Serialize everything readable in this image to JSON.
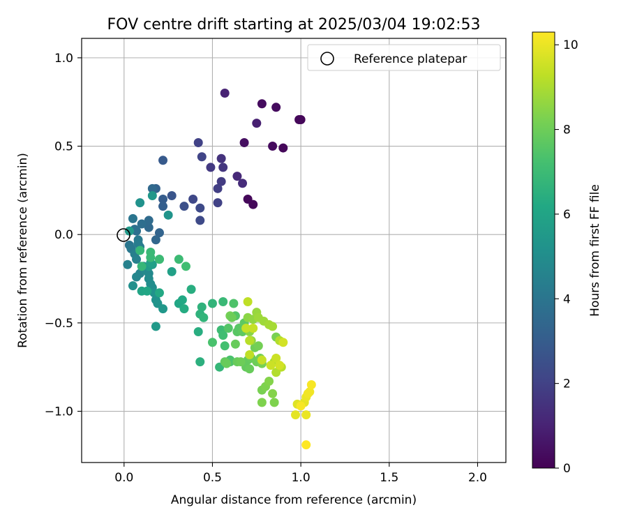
{
  "chart_data": {
    "type": "scatter",
    "title": "FOV centre drift starting at 2025/03/04 19:02:53",
    "xlabel": "Angular distance from reference (arcmin)",
    "ylabel": "Rotation from reference (arcmin)",
    "xlim": [
      -0.24,
      2.16
    ],
    "ylim": [
      -1.29,
      1.11
    ],
    "xticks": [
      0.0,
      0.5,
      1.0,
      1.5,
      2.0
    ],
    "xtick_labels": [
      "0.0",
      "0.5",
      "1.0",
      "1.5",
      "2.0"
    ],
    "yticks": [
      -1.0,
      -0.5,
      0.0,
      0.5,
      1.0
    ],
    "ytick_labels": [
      "−1.0",
      "−0.5",
      "0.0",
      "0.5",
      "1.0"
    ],
    "grid": true,
    "legend": {
      "placement": "top-right",
      "entries": [
        "Reference platepar"
      ]
    },
    "reference_point": {
      "x": 0.0,
      "y": 0.0,
      "marker": "open-circle"
    },
    "colorbar": {
      "label": "Hours from first FF file",
      "colormap": "viridis",
      "range": [
        0,
        10.3
      ],
      "ticks": [
        0,
        2,
        4,
        6,
        8,
        10
      ],
      "tick_labels": [
        "0",
        "2",
        "4",
        "6",
        "8",
        "10"
      ]
    },
    "points": [
      [
        1.0,
        0.65,
        0.1
      ],
      [
        0.78,
        0.74,
        0.3
      ],
      [
        0.86,
        0.72,
        0.3
      ],
      [
        0.68,
        0.52,
        0.4
      ],
      [
        0.84,
        0.5,
        0.3
      ],
      [
        0.9,
        0.49,
        0.2
      ],
      [
        0.7,
        0.2,
        0.2
      ],
      [
        0.73,
        0.17,
        0.2
      ],
      [
        0.99,
        0.65,
        0.2
      ],
      [
        0.75,
        0.63,
        0.9
      ],
      [
        0.57,
        0.8,
        1.0
      ],
      [
        0.64,
        0.33,
        1.2
      ],
      [
        0.67,
        0.29,
        1.3
      ],
      [
        0.55,
        0.43,
        1.5
      ],
      [
        0.56,
        0.38,
        1.6
      ],
      [
        0.49,
        0.38,
        1.7
      ],
      [
        0.55,
        0.3,
        1.8
      ],
      [
        0.53,
        0.26,
        1.9
      ],
      [
        0.53,
        0.18,
        2.0
      ],
      [
        0.42,
        0.52,
        2.0
      ],
      [
        0.44,
        0.44,
        2.1
      ],
      [
        0.39,
        0.2,
        2.2
      ],
      [
        0.43,
        0.15,
        2.3
      ],
      [
        0.43,
        0.08,
        2.3
      ],
      [
        0.34,
        0.16,
        2.5
      ],
      [
        0.27,
        0.22,
        2.7
      ],
      [
        0.22,
        0.42,
        2.9
      ],
      [
        0.22,
        0.2,
        3.0
      ],
      [
        0.22,
        0.16,
        3.1
      ],
      [
        0.18,
        0.26,
        3.2
      ],
      [
        0.2,
        0.01,
        3.3
      ],
      [
        0.18,
        -0.03,
        3.4
      ],
      [
        0.16,
        0.26,
        3.5
      ],
      [
        0.14,
        0.04,
        3.5
      ],
      [
        0.14,
        0.08,
        3.6
      ],
      [
        0.1,
        0.06,
        3.7
      ],
      [
        0.07,
        0.02,
        3.8
      ],
      [
        0.06,
        0.03,
        3.8
      ],
      [
        0.05,
        0.09,
        4.0
      ],
      [
        0.03,
        -0.06,
        4.0
      ],
      [
        0.04,
        -0.08,
        4.1
      ],
      [
        0.08,
        -0.03,
        4.2
      ],
      [
        0.08,
        -0.05,
        4.3
      ],
      [
        0.09,
        -0.07,
        4.3
      ],
      [
        0.06,
        -0.11,
        4.4
      ],
      [
        0.07,
        -0.14,
        4.5
      ],
      [
        0.02,
        -0.17,
        4.5
      ],
      [
        0.09,
        -0.22,
        4.6
      ],
      [
        0.07,
        -0.24,
        4.7
      ],
      [
        0.11,
        -0.18,
        4.7
      ],
      [
        0.12,
        -0.2,
        4.8
      ],
      [
        0.14,
        -0.22,
        4.8
      ],
      [
        0.14,
        -0.25,
        4.9
      ],
      [
        0.15,
        -0.28,
        5.0
      ],
      [
        0.16,
        -0.3,
        5.0
      ],
      [
        0.05,
        -0.29,
        5.1
      ],
      [
        0.17,
        -0.33,
        5.2
      ],
      [
        0.18,
        -0.37,
        5.2
      ],
      [
        0.19,
        -0.39,
        5.3
      ],
      [
        0.22,
        -0.42,
        5.4
      ],
      [
        0.18,
        -0.52,
        5.5
      ],
      [
        0.14,
        -0.18,
        5.6
      ],
      [
        0.16,
        -0.17,
        5.7
      ],
      [
        0.15,
        -0.16,
        5.8
      ],
      [
        0.2,
        -0.14,
        5.9
      ],
      [
        0.27,
        -0.21,
        5.8
      ],
      [
        0.09,
        0.18,
        5.2
      ],
      [
        0.25,
        0.11,
        5.3
      ],
      [
        0.16,
        0.22,
        5.4
      ],
      [
        0.03,
        0.02,
        5.5
      ],
      [
        0.1,
        -0.32,
        6.0
      ],
      [
        0.13,
        -0.32,
        6.1
      ],
      [
        0.2,
        -0.33,
        6.2
      ],
      [
        0.31,
        -0.39,
        6.1
      ],
      [
        0.33,
        -0.37,
        6.2
      ],
      [
        0.34,
        -0.42,
        6.3
      ],
      [
        0.38,
        -0.31,
        6.4
      ],
      [
        0.42,
        -0.55,
        6.4
      ],
      [
        0.43,
        -0.72,
        6.5
      ],
      [
        0.43,
        -0.45,
        6.6
      ],
      [
        0.44,
        -0.41,
        6.6
      ],
      [
        0.45,
        -0.47,
        6.7
      ],
      [
        0.5,
        -0.39,
        6.7
      ],
      [
        0.54,
        -0.75,
        6.8
      ],
      [
        0.56,
        -0.38,
        6.9
      ],
      [
        0.31,
        -0.14,
        7.0
      ],
      [
        0.35,
        -0.18,
        7.1
      ],
      [
        0.2,
        -0.14,
        7.0
      ],
      [
        0.15,
        -0.1,
        6.9
      ],
      [
        0.15,
        -0.13,
        6.9
      ],
      [
        0.09,
        -0.09,
        6.8
      ],
      [
        0.1,
        -0.18,
        6.8
      ],
      [
        0.55,
        -0.54,
        7.0
      ],
      [
        0.56,
        -0.57,
        7.1
      ],
      [
        0.57,
        -0.63,
        7.2
      ],
      [
        0.5,
        -0.61,
        7.3
      ],
      [
        0.6,
        -0.71,
        7.3
      ],
      [
        0.6,
        -0.72,
        7.4
      ],
      [
        0.62,
        -0.39,
        7.4
      ],
      [
        0.59,
        -0.53,
        7.5
      ],
      [
        0.63,
        -0.46,
        7.5
      ],
      [
        0.64,
        -0.55,
        7.6
      ],
      [
        0.65,
        -0.53,
        7.6
      ],
      [
        0.67,
        -0.55,
        7.7
      ],
      [
        0.68,
        -0.5,
        7.7
      ],
      [
        0.69,
        -0.75,
        7.8
      ],
      [
        0.7,
        -0.71,
        7.8
      ],
      [
        0.71,
        -0.76,
        7.9
      ],
      [
        0.72,
        -0.7,
        7.9
      ],
      [
        0.74,
        -0.64,
        8.0
      ],
      [
        0.75,
        -0.72,
        8.0
      ],
      [
        0.76,
        -0.63,
        8.1
      ],
      [
        0.77,
        -0.7,
        8.1
      ],
      [
        0.78,
        -0.73,
        8.2
      ],
      [
        0.78,
        -0.88,
        8.2
      ],
      [
        0.78,
        -0.95,
        8.3
      ],
      [
        0.8,
        -0.86,
        8.3
      ],
      [
        0.82,
        -0.83,
        8.4
      ],
      [
        0.84,
        -0.9,
        8.4
      ],
      [
        0.85,
        -0.95,
        8.3
      ],
      [
        0.86,
        -0.58,
        8.2
      ],
      [
        0.6,
        -0.46,
        8.1
      ],
      [
        0.61,
        -0.47,
        8.0
      ],
      [
        0.63,
        -0.62,
        7.9
      ],
      [
        0.64,
        -0.72,
        7.9
      ],
      [
        0.66,
        -0.72,
        8.0
      ],
      [
        0.57,
        -0.72,
        7.8
      ],
      [
        0.58,
        -0.73,
        7.9
      ],
      [
        0.7,
        -0.47,
        8.5
      ],
      [
        0.71,
        -0.55,
        8.5
      ],
      [
        0.72,
        -0.6,
        8.6
      ],
      [
        0.73,
        -0.48,
        8.6
      ],
      [
        0.75,
        -0.44,
        8.7
      ],
      [
        0.76,
        -0.47,
        8.8
      ],
      [
        0.79,
        -0.49,
        8.8
      ],
      [
        0.82,
        -0.51,
        8.9
      ],
      [
        0.84,
        -0.52,
        8.9
      ],
      [
        0.85,
        -0.72,
        9.0
      ],
      [
        0.86,
        -0.78,
        9.1
      ],
      [
        0.88,
        -0.6,
        9.1
      ],
      [
        0.89,
        -0.75,
        9.2
      ],
      [
        0.7,
        -0.38,
        9.3
      ],
      [
        0.71,
        -0.6,
        9.2
      ],
      [
        0.71,
        -0.68,
        9.3
      ],
      [
        0.69,
        -0.53,
        9.4
      ],
      [
        0.73,
        -0.53,
        9.4
      ],
      [
        0.78,
        -0.71,
        9.4
      ],
      [
        0.83,
        -0.74,
        9.5
      ],
      [
        0.86,
        -0.7,
        9.5
      ],
      [
        0.88,
        -0.74,
        9.6
      ],
      [
        0.9,
        -0.61,
        9.6
      ],
      [
        0.97,
        -1.02,
        9.9
      ],
      [
        0.98,
        -0.96,
        9.8
      ],
      [
        1.02,
        -0.95,
        9.9
      ],
      [
        1.03,
        -0.92,
        10.0
      ],
      [
        1.03,
        -1.02,
        10.0
      ],
      [
        1.04,
        -0.9,
        10.1
      ],
      [
        1.05,
        -0.89,
        10.1
      ],
      [
        1.06,
        -0.85,
        10.2
      ],
      [
        1.03,
        -1.19,
        10.3
      ],
      [
        1.0,
        -0.97,
        10.2
      ]
    ]
  }
}
